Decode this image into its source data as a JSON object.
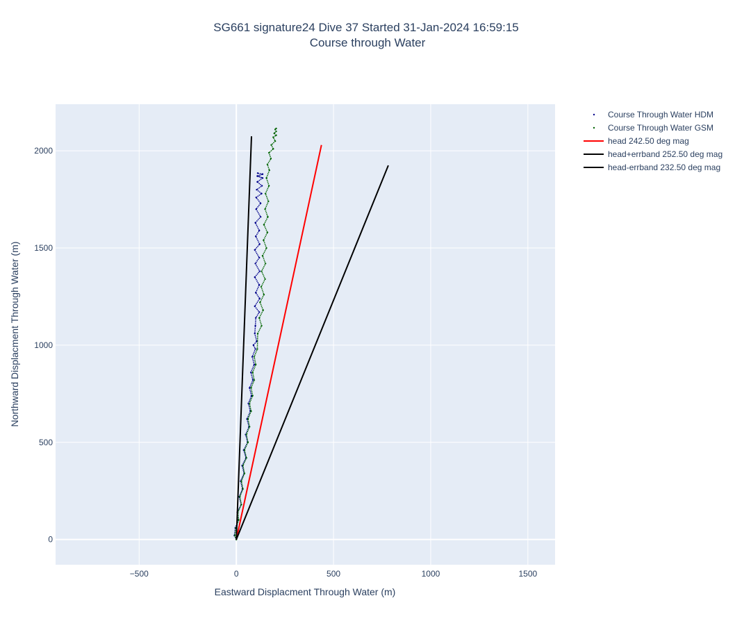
{
  "chart_data": {
    "type": "scatter",
    "title": [
      "SG661 signature24 Dive 37 Started 31-Jan-2024 16:59:15",
      "Course through Water"
    ],
    "xlabel": "Eastward Displacment Through Water (m)",
    "ylabel": "Northward Displacment Through Water (m)",
    "xlim": [
      -930,
      1640
    ],
    "ylim": [
      -130,
      2240
    ],
    "x_ticks": [
      -500,
      0,
      500,
      1000,
      1500
    ],
    "x_tick_labels": [
      "−500",
      "0",
      "500",
      "1000",
      "1500"
    ],
    "y_ticks": [
      0,
      500,
      1000,
      1500,
      2000
    ],
    "y_tick_labels": [
      "0",
      "500",
      "1000",
      "1500",
      "2000"
    ],
    "grid": true,
    "legend_position": "outside-right",
    "background": "#e5ecf6",
    "series": [
      {
        "name": "Course Through Water HDM",
        "mode": "markers",
        "color": "#00008b",
        "x": [
          0,
          -10,
          -5,
          10,
          5,
          25,
          15,
          32,
          22,
          40,
          30,
          50,
          38,
          58,
          48,
          65,
          55,
          72,
          62,
          78,
          68,
          85,
          75,
          92,
          82,
          98,
          88,
          105,
          95,
          98,
          100,
          118,
          95,
          120,
          100,
          118,
          95,
          120,
          98,
          118,
          95,
          120,
          100,
          118,
          98,
          125,
          102,
          125,
          102,
          130,
          105,
          132,
          108,
          135,
          108,
          135,
          110,
          135,
          112,
          135
        ],
        "y": [
          0,
          20,
          60,
          100,
          140,
          180,
          220,
          260,
          300,
          340,
          380,
          420,
          460,
          500,
          540,
          580,
          620,
          660,
          700,
          740,
          780,
          820,
          860,
          900,
          940,
          980,
          1000,
          1020,
          1060,
          1100,
          1140,
          1170,
          1200,
          1240,
          1270,
          1310,
          1350,
          1380,
          1420,
          1450,
          1490,
          1520,
          1560,
          1590,
          1630,
          1660,
          1700,
          1730,
          1760,
          1780,
          1800,
          1820,
          1840,
          1860,
          1870,
          1880,
          1885,
          1880,
          1870,
          1860
        ]
      },
      {
        "name": "Course Through Water GSM",
        "mode": "markers",
        "color": "#006400",
        "x": [
          0,
          -8,
          -2,
          12,
          8,
          26,
          18,
          34,
          26,
          42,
          34,
          52,
          42,
          60,
          52,
          68,
          60,
          76,
          68,
          84,
          76,
          92,
          84,
          100,
          92,
          108,
          110,
          130,
          118,
          138,
          122,
          142,
          128,
          148,
          130,
          150,
          135,
          155,
          140,
          160,
          142,
          162,
          148,
          165,
          150,
          168,
          155,
          170,
          160,
          178,
          168,
          190,
          180,
          200,
          190,
          205,
          195,
          205,
          200,
          205
        ],
        "y": [
          0,
          20,
          60,
          100,
          140,
          180,
          220,
          260,
          300,
          340,
          380,
          420,
          460,
          500,
          540,
          580,
          620,
          660,
          700,
          740,
          780,
          820,
          860,
          900,
          940,
          980,
          1060,
          1100,
          1140,
          1180,
          1220,
          1260,
          1300,
          1340,
          1380,
          1420,
          1460,
          1500,
          1540,
          1580,
          1620,
          1660,
          1700,
          1740,
          1780,
          1820,
          1860,
          1900,
          1930,
          1960,
          1990,
          2010,
          2030,
          2050,
          2070,
          2080,
          2090,
          2100,
          2110,
          2115
        ]
      },
      {
        "name": "head 242.50 deg mag",
        "mode": "lines",
        "color": "#ff0000",
        "x": [
          0,
          438
        ],
        "y": [
          0,
          2030
        ]
      },
      {
        "name": "head+errband 252.50 deg mag",
        "mode": "lines",
        "color": "#000000",
        "x": [
          0,
          78
        ],
        "y": [
          0,
          2075
        ]
      },
      {
        "name": "head-errband 232.50 deg mag",
        "mode": "lines",
        "color": "#000000",
        "x": [
          0,
          782
        ],
        "y": [
          0,
          1925
        ]
      }
    ]
  }
}
